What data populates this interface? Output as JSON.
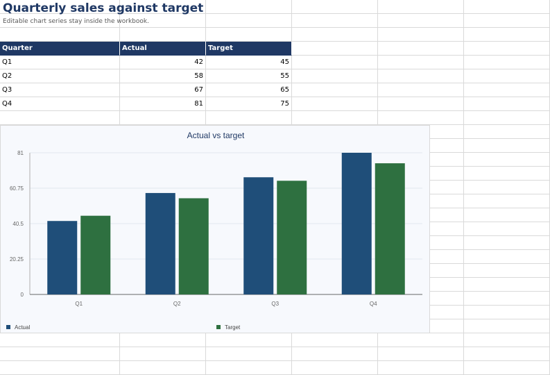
{
  "sheet": {
    "title": "Quarterly sales against target",
    "subtitle": "Editable chart series stay inside the workbook."
  },
  "table": {
    "headers": [
      "Quarter",
      "Actual",
      "Target"
    ],
    "rows": [
      [
        "Q1",
        "42",
        "45"
      ],
      [
        "Q2",
        "58",
        "55"
      ],
      [
        "Q3",
        "67",
        "65"
      ],
      [
        "Q4",
        "81",
        "75"
      ]
    ]
  },
  "colors": {
    "header_bg": "#1f3864",
    "actual": "#1f4e79",
    "target": "#2e7040",
    "title": "#1f3864"
  },
  "chart_data": {
    "type": "bar",
    "title": "Actual vs target",
    "categories": [
      "Q1",
      "Q2",
      "Q3",
      "Q4"
    ],
    "series": [
      {
        "name": "Actual",
        "values": [
          42,
          58,
          67,
          81
        ]
      },
      {
        "name": "Target",
        "values": [
          45,
          55,
          65,
          75
        ]
      }
    ],
    "ylim": [
      0,
      81
    ],
    "yticks": [
      "0",
      "20.25",
      "40.5",
      "60.75",
      "81"
    ],
    "grid": true,
    "legend": "bottom"
  }
}
